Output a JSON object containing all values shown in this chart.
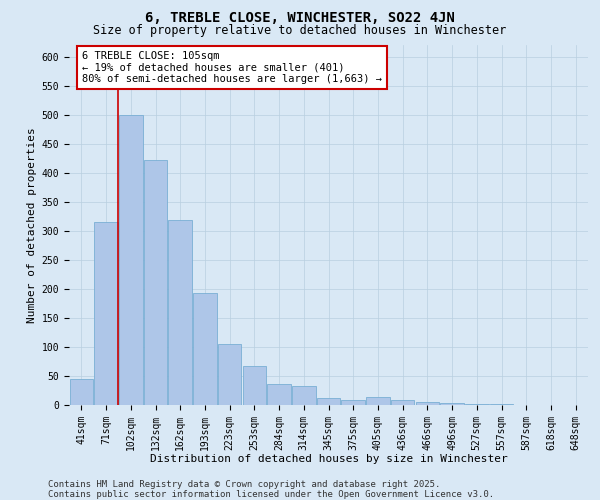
{
  "title": "6, TREBLE CLOSE, WINCHESTER, SO22 4JN",
  "subtitle": "Size of property relative to detached houses in Winchester",
  "xlabel": "Distribution of detached houses by size in Winchester",
  "ylabel": "Number of detached properties",
  "categories": [
    "41sqm",
    "71sqm",
    "102sqm",
    "132sqm",
    "162sqm",
    "193sqm",
    "223sqm",
    "253sqm",
    "284sqm",
    "314sqm",
    "345sqm",
    "375sqm",
    "405sqm",
    "436sqm",
    "466sqm",
    "496sqm",
    "527sqm",
    "557sqm",
    "587sqm",
    "618sqm",
    "648sqm"
  ],
  "values": [
    45,
    315,
    500,
    422,
    318,
    193,
    105,
    68,
    37,
    33,
    12,
    9,
    13,
    9,
    6,
    3,
    1,
    1,
    0,
    0,
    0
  ],
  "bar_color": "#aec6e8",
  "bar_edge_color": "#7aafd4",
  "vline_color": "#cc0000",
  "vline_x_index": 2,
  "annotation_box_text": "6 TREBLE CLOSE: 105sqm\n← 19% of detached houses are smaller (401)\n80% of semi-detached houses are larger (1,663) →",
  "annotation_box_color": "#cc0000",
  "annotation_bg": "#ffffff",
  "ylim": [
    0,
    620
  ],
  "yticks": [
    0,
    50,
    100,
    150,
    200,
    250,
    300,
    350,
    400,
    450,
    500,
    550,
    600
  ],
  "grid_color": "#b8cfe0",
  "background_color": "#d9e8f5",
  "footer": "Contains HM Land Registry data © Crown copyright and database right 2025.\nContains public sector information licensed under the Open Government Licence v3.0.",
  "title_fontsize": 10,
  "subtitle_fontsize": 8.5,
  "xlabel_fontsize": 8,
  "ylabel_fontsize": 8,
  "tick_fontsize": 7,
  "annotation_fontsize": 7.5,
  "footer_fontsize": 6.5
}
